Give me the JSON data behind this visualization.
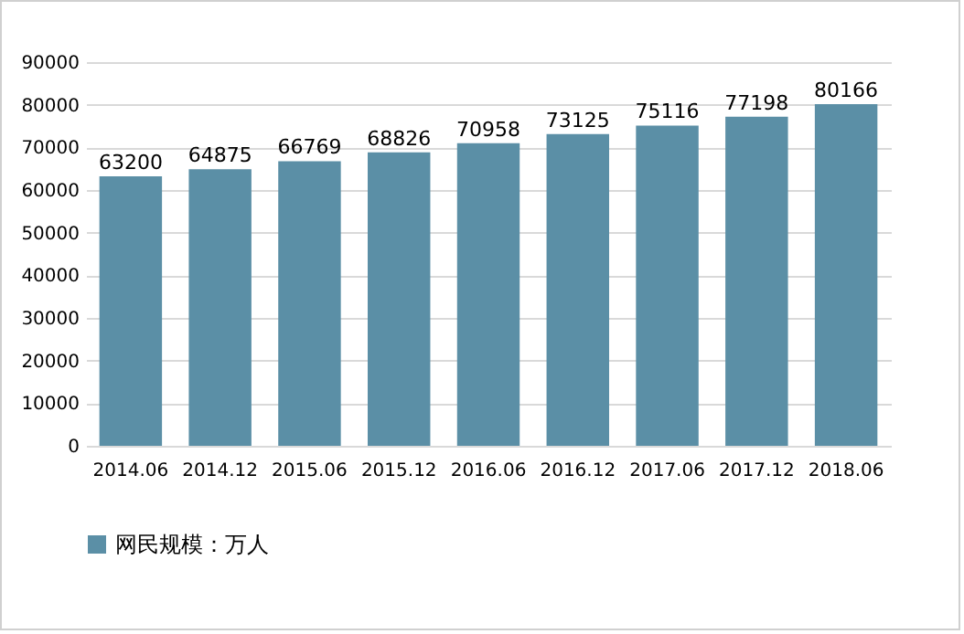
{
  "chart_data": {
    "type": "bar",
    "categories": [
      "2014.06",
      "2014.12",
      "2015.06",
      "2015.12",
      "2016.06",
      "2016.12",
      "2017.06",
      "2017.12",
      "2018.06"
    ],
    "series": [
      {
        "name": "网民规模：万人",
        "color": "#5b8fa6",
        "values": [
          63200,
          64875,
          66769,
          68826,
          70958,
          73125,
          75116,
          77198,
          80166
        ]
      }
    ],
    "ylim": [
      0,
      90000
    ],
    "yticks": [
      0,
      10000,
      20000,
      30000,
      40000,
      50000,
      60000,
      70000,
      80000,
      90000
    ],
    "grid": "y",
    "legend": "bottom",
    "data_labels": true
  }
}
